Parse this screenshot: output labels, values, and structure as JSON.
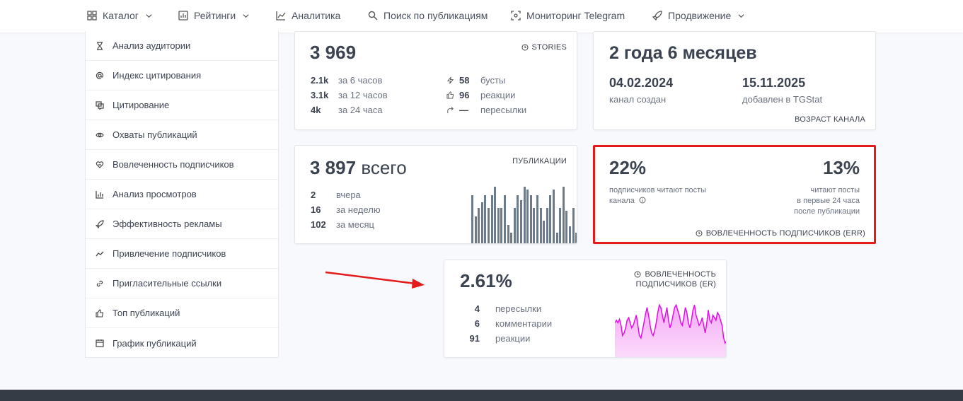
{
  "nav": {
    "items": [
      {
        "label": "Каталог",
        "icon": "grid-icon"
      },
      {
        "label": "Рейтинги",
        "icon": "rating-icon"
      },
      {
        "label": "Аналитика",
        "icon": "chart-line-icon"
      },
      {
        "label": "Поиск по публикациям",
        "icon": "search-icon"
      },
      {
        "label": "Мониторинг Telegram",
        "icon": "monitor-icon"
      },
      {
        "label": "Продвижение",
        "icon": "rocket-icon"
      }
    ]
  },
  "sidebar": {
    "items": [
      {
        "label": "Анализ аудитории",
        "icon": "hourglass-icon"
      },
      {
        "label": "Индекс цитирования",
        "icon": "at-icon"
      },
      {
        "label": "Цитирование",
        "icon": "quote-icon"
      },
      {
        "label": "Охваты публикаций",
        "icon": "eye-icon"
      },
      {
        "label": "Вовлеченность подписчиков",
        "icon": "heart-hand-icon"
      },
      {
        "label": "Анализ просмотров",
        "icon": "bar-chart-icon"
      },
      {
        "label": "Эффективность рекламы",
        "icon": "rocket-icon"
      },
      {
        "label": "Привлечение подписчиков",
        "icon": "trend-icon"
      },
      {
        "label": "Пригласительные ссылки",
        "icon": "link-icon"
      },
      {
        "label": "Топ публикаций",
        "icon": "thumb-up-icon"
      },
      {
        "label": "График публикаций",
        "icon": "calendar-icon"
      }
    ]
  },
  "stories": {
    "value": "3 969",
    "tag": "STORIES",
    "left": [
      {
        "num": "2.1k",
        "label": "за 6 часов"
      },
      {
        "num": "3.1k",
        "label": "за 12 часов"
      },
      {
        "num": "4k",
        "label": "за 24 часа"
      }
    ],
    "right": [
      {
        "num": "58",
        "label": "бусты",
        "icon": "bolt-icon"
      },
      {
        "num": "96",
        "label": "реакции",
        "icon": "thumb-up-icon"
      },
      {
        "num": "—",
        "label": "пересылки",
        "icon": "forward-icon"
      }
    ]
  },
  "age": {
    "value": "2 года 6 месяцев",
    "created_date": "04.02.2024",
    "created_label": "канал создан",
    "added_date": "15.11.2025",
    "added_label": "добавлен в TGStat",
    "tag": "ВОЗРАСТ КАНАЛА"
  },
  "publications": {
    "value": "3 897",
    "value_suffix": "всего",
    "tag": "ПУБЛИКАЦИИ",
    "rows": [
      {
        "num": "2",
        "label": "вчера"
      },
      {
        "num": "16",
        "label": "за неделю"
      },
      {
        "num": "102",
        "label": "за месяц"
      }
    ],
    "bars": [
      0.85,
      0.48,
      0.62,
      0.72,
      0.85,
      0.62,
      0.85,
      1.0,
      0.62,
      0.62,
      0.85,
      0.33,
      0.19,
      0.62,
      0.85,
      0.76,
      1.0,
      0.95,
      0.85,
      0.62,
      0.85,
      0.62,
      0.4,
      0.62,
      0.85,
      0.95,
      0.19,
      0.62,
      1.0,
      0.57,
      0.3,
      0.62,
      0.19
    ]
  },
  "err": {
    "left_value": "22%",
    "left_label": "подписчиков читают посты канала",
    "right_value": "13%",
    "right_label_1": "читают посты",
    "right_label_2": "в первые 24 часа",
    "right_label_3": "после публикации",
    "tag": "ВОВЛЕЧЕННОСТЬ ПОДПИСЧИКОВ (ERR)"
  },
  "er": {
    "value": "2.61%",
    "tag_1": "ВОВЛЕЧЕННОСТЬ",
    "tag_2": "ПОДПИСЧИКОВ (ER)",
    "rows": [
      {
        "num": "4",
        "label": "пересылки"
      },
      {
        "num": "6",
        "label": "комментарии"
      },
      {
        "num": "91",
        "label": "реакции"
      }
    ],
    "sparkline": [
      0.55,
      0.6,
      0.55,
      0.62,
      0.5,
      0.3,
      0.35,
      0.45,
      0.6,
      0.65,
      0.55,
      0.45,
      0.5,
      0.6,
      0.7,
      0.5,
      0.3,
      0.25,
      0.4,
      0.55,
      0.72,
      0.85,
      0.7,
      0.5,
      0.35,
      0.3,
      0.4,
      0.55,
      0.75,
      0.9,
      0.85,
      0.7,
      0.55,
      0.7,
      0.85,
      0.6,
      0.45,
      0.55,
      0.7,
      0.85,
      0.9,
      0.8,
      0.7,
      0.55,
      0.5,
      0.65,
      0.85,
      0.75,
      0.55,
      0.45,
      0.6,
      0.8,
      0.9,
      0.7,
      0.6,
      0.5,
      0.55,
      0.65,
      0.5,
      0.35,
      0.55,
      0.8,
      0.6,
      0.55,
      0.7,
      0.65,
      0.6,
      0.75,
      0.7,
      0.6,
      0.5,
      0.25,
      0.15,
      0.2
    ]
  },
  "colors": {
    "highlight": "#e31b1b",
    "arrow": "#e31b1b",
    "sparkline": "#e20ee7",
    "bars": "#6c7a8a"
  }
}
